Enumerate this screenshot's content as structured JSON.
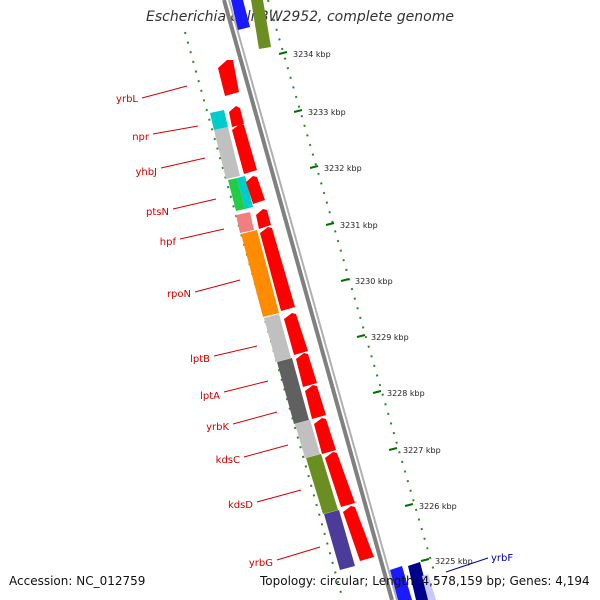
{
  "header": {
    "title": "Escherichia coli BW2952, complete genome"
  },
  "footer": {
    "accession": "Accession: NC_012759",
    "topology": "Topology: circular; Length: 4,578,159 bp; Genes: 4,194"
  },
  "ticks": [
    "3234 kbp",
    "3233 kbp",
    "3232 kbp",
    "3231 kbp",
    "3230 kbp",
    "3229 kbp",
    "3228 kbp",
    "3227 kbp",
    "3226 kbp",
    "3225 kbp"
  ],
  "genes": {
    "labels": [
      "yrbL",
      "npr",
      "yhbJ",
      "ptsN",
      "hpf",
      "rpoN",
      "lptB",
      "lptA",
      "yrbK",
      "kdsC",
      "kdsD",
      "yrbG"
    ],
    "right_label": "yrbF"
  },
  "colors": {
    "cds": "#ff0000",
    "backbone": "#808080",
    "label_red": "#d40000",
    "label_blue": "#0000a0",
    "tick_green": "#007000"
  }
}
